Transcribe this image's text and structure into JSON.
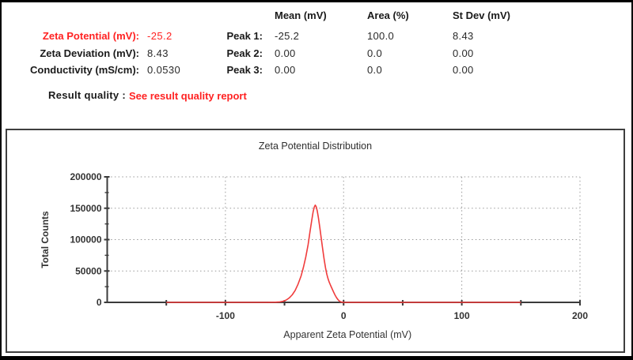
{
  "results": {
    "rows": [
      {
        "label": "Zeta Potential (mV):",
        "value": "-25.2",
        "highlight": true
      },
      {
        "label": "Zeta Deviation (mV):",
        "value": "8.43",
        "highlight": false
      },
      {
        "label": "Conductivity (mS/cm):",
        "value": "0.0530",
        "highlight": false
      }
    ],
    "quality_label": "Result quality :",
    "quality_value": "See result quality report"
  },
  "peaks": {
    "columns": [
      "Mean (mV)",
      "Area (%)",
      "St Dev (mV)"
    ],
    "rows": [
      {
        "label": "Peak 1:",
        "mean": "-25.2",
        "area": "100.0",
        "stdev": "8.43"
      },
      {
        "label": "Peak 2:",
        "mean": "0.00",
        "area": "0.0",
        "stdev": "0.00"
      },
      {
        "label": "Peak 3:",
        "mean": "0.00",
        "area": "0.0",
        "stdev": "0.00"
      }
    ]
  },
  "colors": {
    "accent_red_text": "#ff2222",
    "curve_red": "#f03c3c",
    "axis_gray": "#3b3b3b",
    "grid_gray": "#999999"
  },
  "chart_data": {
    "type": "line",
    "title": "Zeta Potential Distribution",
    "xlabel": "Apparent Zeta Potential (mV)",
    "ylabel": "Total Counts",
    "xlim": [
      -200,
      200
    ],
    "ylim": [
      0,
      200000
    ],
    "x_major_ticks": [
      -150,
      -100,
      -50,
      0,
      50,
      100,
      150,
      200
    ],
    "x_labeled_ticks": [
      -100,
      0,
      100,
      200
    ],
    "y_labeled_ticks": [
      0,
      50000,
      100000,
      150000,
      200000
    ],
    "y_minor_ticks": [
      25000,
      75000,
      125000,
      175000
    ],
    "grid_x": [
      -100,
      0,
      100,
      200
    ],
    "grid_y": [
      50000,
      100000,
      150000,
      200000
    ],
    "grid": true,
    "legend": "none",
    "line_color": "#f03c3c",
    "series": [
      {
        "name": "Zeta potential distribution",
        "peak_mean_mV": -25.2,
        "peak_max_counts": 155000,
        "x": [
          -150,
          -65,
          -58,
          -54,
          -51,
          -48.5,
          -46,
          -43.5,
          -41,
          -38.5,
          -36,
          -34,
          -32,
          -30,
          -28.5,
          -27,
          -25.8,
          -24.8,
          -24,
          -23.2,
          -22.3,
          -21.3,
          -20.2,
          -19,
          -17.8,
          -16.5,
          -15.3,
          -14.2,
          -13.2,
          -12.2,
          -11,
          -9.8,
          -8.5,
          -7.2,
          -6,
          -4.8,
          -3.6,
          -2.4,
          -1.2,
          0,
          150
        ],
        "y": [
          0,
          0,
          200,
          700,
          1800,
          3800,
          7000,
          12000,
          19000,
          29000,
          42000,
          56000,
          72000,
          92000,
          112000,
          130000,
          144000,
          152000,
          155000,
          152500,
          146000,
          135000,
          120000,
          103000,
          86000,
          69000,
          55000,
          45000,
          38000,
          32500,
          27000,
          22000,
          16500,
          11500,
          7500,
          4400,
          2200,
          900,
          250,
          0,
          0
        ]
      }
    ]
  }
}
